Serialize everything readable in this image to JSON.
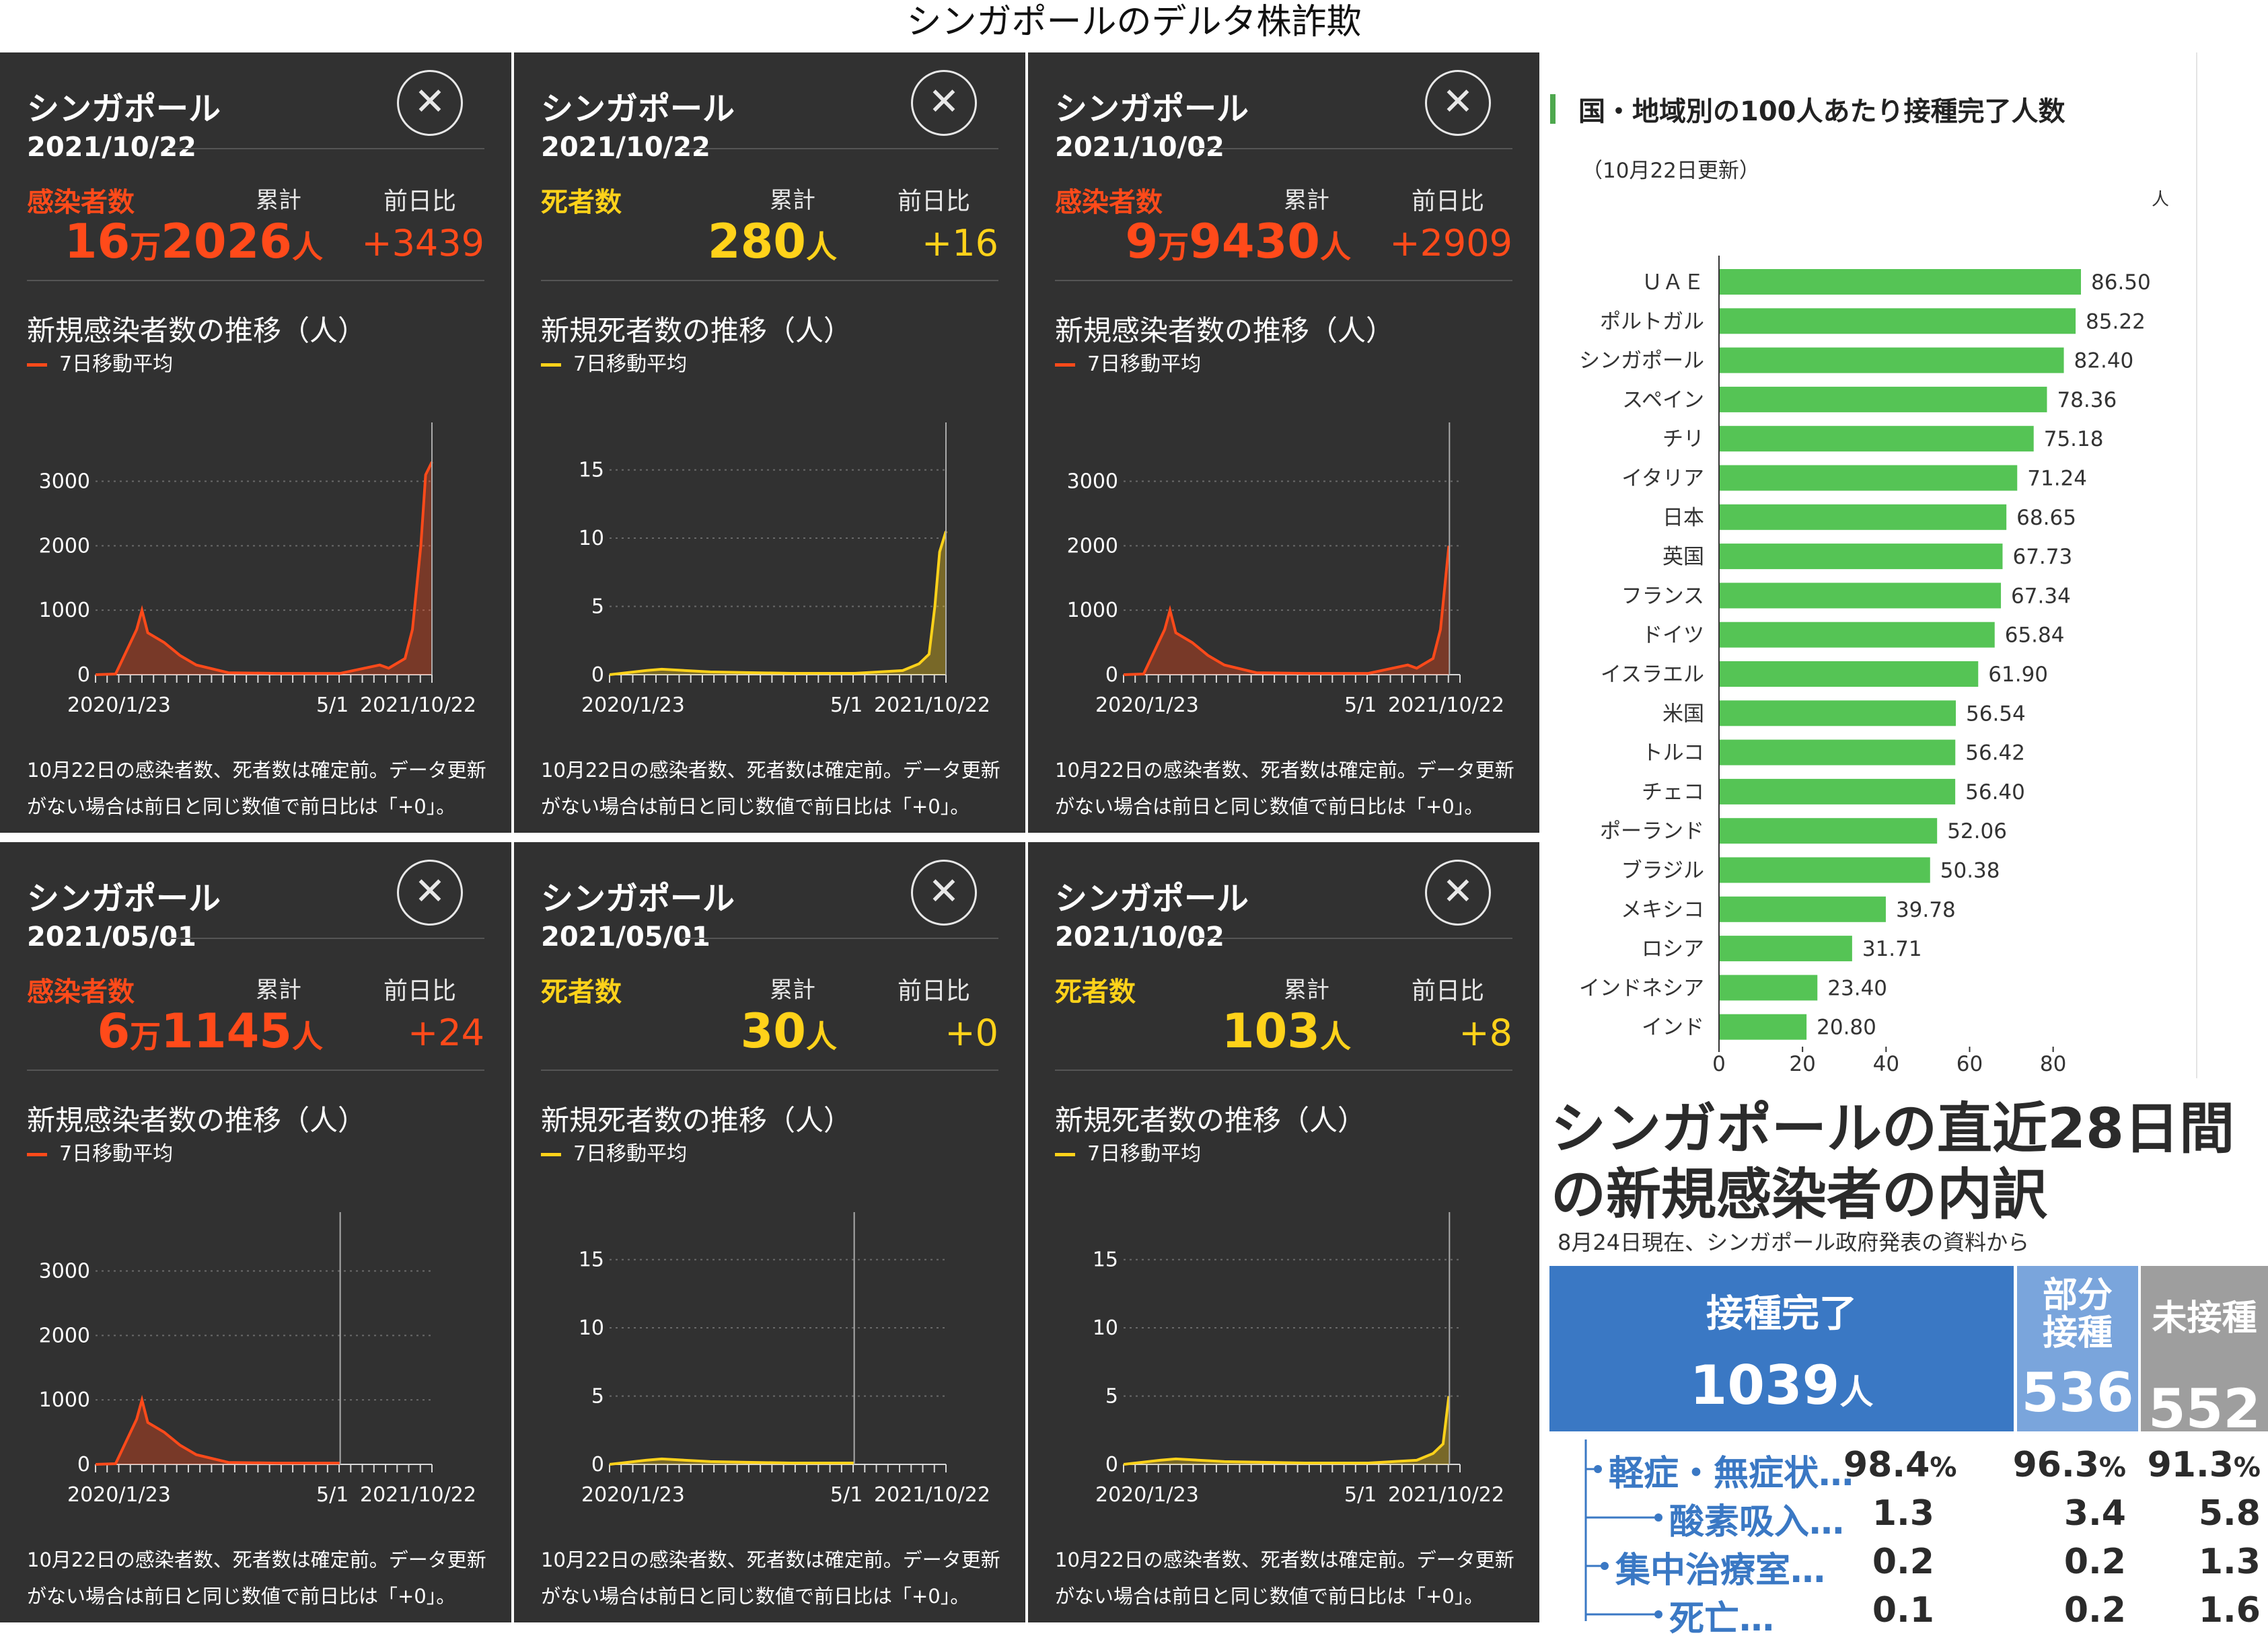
{
  "page_title": "シンガポールのデルタ株詐欺",
  "panel_common": {
    "country": "シンガポール",
    "cumulative_label": "累計",
    "diff_label": "前日比",
    "legend": "7日移動平均",
    "note": "10月22日の感染者数、死者数は確定前。データ更新がない場合は前日と同じ数値で前日比は「+0」。",
    "x_ticks": [
      "2020/1/23",
      "5/1",
      "2021/10/22"
    ]
  },
  "panels": [
    {
      "date": "2021/10/22",
      "metric": "感染者数",
      "total_prefix": "16",
      "total_man": "万",
      "total_rest": "2026",
      "total_unit": "人",
      "diff": "+3439",
      "chart_title": "新規感染者数の推移（人）",
      "color": "#ff4a1a",
      "y_ticks": [
        "3000",
        "2000",
        "1000",
        "0"
      ],
      "ymax": 3600,
      "series": "cases",
      "cursor": "2021/10/22"
    },
    {
      "date": "2021/10/22",
      "metric": "死者数",
      "total_prefix": "",
      "total_man": "",
      "total_rest": "280",
      "total_unit": "人",
      "diff": "+16",
      "chart_title": "新規死者数の推移（人）",
      "color": "#ffd21a",
      "y_ticks": [
        "15",
        "10",
        "5",
        "0"
      ],
      "ymax": 17,
      "series": "deaths",
      "cursor": "2021/10/22"
    },
    {
      "date": "2021/10/02",
      "metric": "感染者数",
      "total_prefix": "9",
      "total_man": "万",
      "total_rest": "9430",
      "total_unit": "人",
      "diff": "+2909",
      "chart_title": "新規感染者数の推移（人）",
      "color": "#ff4a1a",
      "y_ticks": [
        "3000",
        "2000",
        "1000",
        "0"
      ],
      "ymax": 3600,
      "series": "cases",
      "cursor": "2021/10/02"
    },
    {
      "date": "2021/05/01",
      "metric": "感染者数",
      "total_prefix": "6",
      "total_man": "万",
      "total_rest": "1145",
      "total_unit": "人",
      "diff": "+24",
      "chart_title": "新規感染者数の推移（人）",
      "color": "#ff4a1a",
      "y_ticks": [
        "3000",
        "2000",
        "1000",
        "0"
      ],
      "ymax": 3600,
      "series": "cases",
      "cursor": "2021/05/01"
    },
    {
      "date": "2021/05/01",
      "metric": "死者数",
      "total_prefix": "",
      "total_man": "",
      "total_rest": "30",
      "total_unit": "人",
      "diff": "+0",
      "chart_title": "新規死者数の推移（人）",
      "color": "#ffd21a",
      "y_ticks": [
        "15",
        "10",
        "5",
        "0"
      ],
      "ymax": 17,
      "series": "deaths",
      "cursor": "2021/05/01"
    },
    {
      "date": "2021/10/02",
      "metric": "死者数",
      "total_prefix": "",
      "total_man": "",
      "total_rest": "103",
      "total_unit": "人",
      "diff": "+8",
      "chart_title": "新規死者数の推移（人）",
      "color": "#ffd21a",
      "y_ticks": [
        "15",
        "10",
        "5",
        "0"
      ],
      "ymax": 17,
      "series": "deaths",
      "cursor": "2021/10/02"
    }
  ],
  "chart_data": [
    {
      "type": "line",
      "title": "新規感染者数の推移（人）",
      "legend": [
        "7日移動平均"
      ],
      "x": [
        "2020/1/23",
        "2020/3/1",
        "2020/4/10",
        "2020/4/20",
        "2020/5/1",
        "2020/6/1",
        "2020/7/1",
        "2020/8/1",
        "2020/10/1",
        "2021/1/1",
        "2021/5/1",
        "2021/7/15",
        "2021/8/1",
        "2021/9/1",
        "2021/9/15",
        "2021/10/1",
        "2021/10/10",
        "2021/10/22"
      ],
      "series": [
        {
          "name": "7日移動平均",
          "values": [
            0,
            10,
            700,
            1000,
            650,
            500,
            300,
            150,
            30,
            20,
            20,
            150,
            100,
            250,
            700,
            2000,
            3100,
            3300
          ]
        }
      ],
      "ylim": [
        0,
        3600
      ],
      "y_ticks": [
        0,
        1000,
        2000,
        3000
      ]
    },
    {
      "type": "line",
      "title": "新規死者数の推移（人）",
      "legend": [
        "7日移動平均"
      ],
      "x": [
        "2020/1/23",
        "2020/4/1",
        "2020/5/1",
        "2020/8/1",
        "2021/1/1",
        "2021/5/1",
        "2021/8/1",
        "2021/9/1",
        "2021/9/20",
        "2021/10/1",
        "2021/10/10",
        "2021/10/22"
      ],
      "series": [
        {
          "name": "7日移動平均",
          "values": [
            0,
            0.3,
            0.4,
            0.2,
            0.1,
            0.1,
            0.3,
            0.8,
            1.5,
            5,
            9,
            10.5
          ]
        }
      ],
      "ylim": [
        0,
        17
      ],
      "y_ticks": [
        0,
        5,
        10,
        15
      ]
    },
    {
      "type": "bar",
      "title": "国・地域別の100人あたり接種完了人数",
      "subtitle": "（10月22日更新）",
      "unit": "人",
      "categories": [
        "ＵＡＥ",
        "ポルトガル",
        "シンガポール",
        "スペイン",
        "チリ",
        "イタリア",
        "日本",
        "英国",
        "フランス",
        "ドイツ",
        "イスラエル",
        "米国",
        "トルコ",
        "チェコ",
        "ポーランド",
        "ブラジル",
        "メキシコ",
        "ロシア",
        "インドネシア",
        "インド"
      ],
      "values": [
        86.5,
        85.22,
        82.4,
        78.36,
        75.18,
        71.24,
        68.65,
        67.73,
        67.34,
        65.84,
        61.9,
        56.54,
        56.42,
        56.4,
        52.06,
        50.38,
        39.78,
        31.71,
        23.4,
        20.8
      ],
      "value_labels": [
        "86.50",
        "85.22",
        "82.40",
        "78.36",
        "75.18",
        "71.24",
        "68.65",
        "67.73",
        "67.34",
        "65.84",
        "61.90",
        "56.54",
        "56.42",
        "56.40",
        "52.06",
        "50.38",
        "39.78",
        "31.71",
        "23.40",
        "20.80"
      ],
      "xlim": [
        0,
        86.5
      ],
      "x_ticks": [
        0,
        20,
        40,
        60,
        80
      ],
      "bar_color": "#55c455"
    },
    {
      "type": "table",
      "title": "シンガポールの直近28日間の新規感染者の内訳",
      "subtitle": "8月24日現在、シンガポール政府発表の資料から",
      "groups": [
        {
          "name": "接種完了",
          "count": "1039",
          "unit": "人",
          "color": "#3a78c4"
        },
        {
          "name": "部分接種",
          "count": "536",
          "unit": "",
          "color": "#7aa5dc"
        },
        {
          "name": "未接種",
          "count": "552",
          "unit": "",
          "color": "#9e9e9e"
        }
      ],
      "rows": [
        {
          "label": "軽症・無症状…",
          "values": [
            "98.4",
            "96.3",
            "91.3"
          ],
          "suffix": "%"
        },
        {
          "label": "酸素吸入…",
          "values": [
            "1.3",
            "3.4",
            "5.8"
          ],
          "suffix": ""
        },
        {
          "label": "集中治療室…",
          "values": [
            "0.2",
            "0.2",
            "1.3"
          ],
          "suffix": ""
        },
        {
          "label": "死亡…",
          "values": [
            "0.1",
            "0.2",
            "1.6"
          ],
          "suffix": ""
        }
      ]
    }
  ]
}
